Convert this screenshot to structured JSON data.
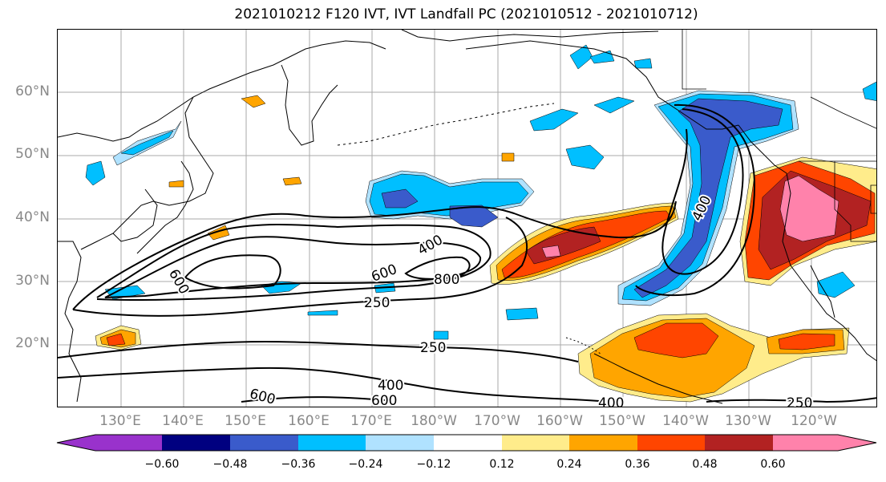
{
  "title": "2021010212 F120 IVT, IVT Landfall PC (2021010512 - 2021010712)",
  "lat_labels": [
    "60°N",
    "50°N",
    "40°N",
    "30°N",
    "20°N"
  ],
  "lon_labels": [
    "130°E",
    "140°E",
    "150°E",
    "160°E",
    "170°E",
    "180°W",
    "170°W",
    "160°W",
    "150°W",
    "140°W",
    "130°W",
    "120°W"
  ],
  "contour_labels": {
    "c600_west": "600",
    "c400_mid": "400",
    "c600_mid": "600",
    "c800": "800",
    "c250_mid": "250",
    "c400_east": "400",
    "c250_south": "250",
    "c400_south": "400",
    "c600_south_left": "600",
    "c600_south": "600",
    "c400_se": "400",
    "c250_se": "250"
  },
  "colorbar": {
    "colors": [
      "#9932CC",
      "#000080",
      "#3A5BCB",
      "#00BFFF",
      "#B0E2FF",
      "#FFFFFF",
      "#FFEC8B",
      "#FFA500",
      "#FF4500",
      "#B22222",
      "#FF82AB"
    ],
    "ticks": [
      "−0.60",
      "−0.48",
      "−0.36",
      "−0.24",
      "−0.12",
      "0.12",
      "0.24",
      "0.36",
      "0.48",
      "0.60"
    ]
  },
  "colors": {
    "orange_light": "#FFEC8B",
    "orange": "#FFA500",
    "orange_red": "#FF4500",
    "firebrick": "#B22222",
    "pink": "#FF82AB",
    "blue_light": "#B0E2FF",
    "blue": "#00BFFF",
    "royal_blue": "#3A5BCB"
  }
}
